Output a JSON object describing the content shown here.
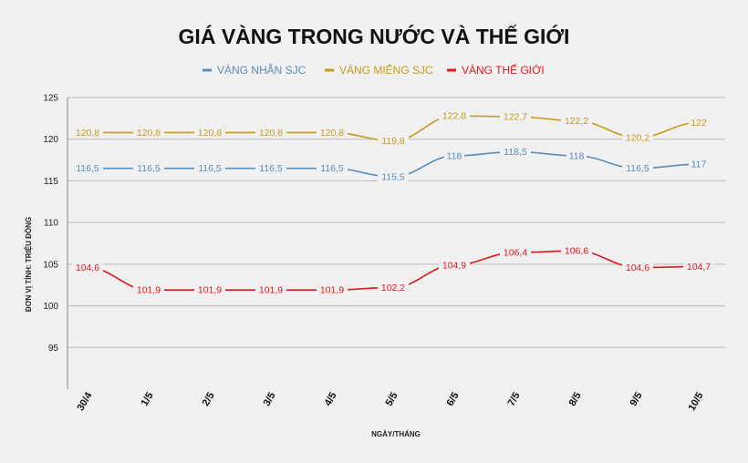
{
  "chart_data": {
    "type": "line",
    "title": "GIÁ VÀNG TRONG NƯỚC VÀ THẾ GIỚI",
    "xlabel": "NGÀY/THÁNG",
    "ylabel": "ĐƠN VỊ TÍNH: TRIỆU ĐỒNG",
    "ylim": [
      90,
      125
    ],
    "yticks": [
      125,
      120,
      115,
      110,
      105,
      100,
      95
    ],
    "grid": true,
    "legend_position": "top-center",
    "categories": [
      "30/4",
      "1/5",
      "2/5",
      "3/5",
      "4/5",
      "5/5",
      "6/5",
      "7/5",
      "8/5",
      "9/5",
      "10/5"
    ],
    "series": [
      {
        "name": "VÀNG NHẪN SJC",
        "color": "#5b8db8",
        "values": [
          116.5,
          116.5,
          116.5,
          116.5,
          116.5,
          115.5,
          118,
          118.5,
          118,
          116.5,
          117
        ],
        "labels": [
          "116,5",
          "116,5",
          "116,5",
          "116,5",
          "116,5",
          "115,5",
          "118",
          "118,5",
          "118",
          "116,5",
          "117"
        ]
      },
      {
        "name": "VÀNG MIẾNG SJC",
        "color": "#c89b1c",
        "values": [
          120.8,
          120.8,
          120.8,
          120.8,
          120.8,
          119.8,
          122.8,
          122.7,
          122.2,
          120.2,
          122
        ],
        "labels": [
          "120,8",
          "120,8",
          "120,8",
          "120,8",
          "120,8",
          "119,8",
          "122,8",
          "122,7",
          "122,2",
          "120,2",
          "122"
        ]
      },
      {
        "name": "VÀNG THẾ GIỚI",
        "color": "#e01818",
        "values": [
          104.6,
          101.9,
          101.9,
          101.9,
          101.9,
          102.2,
          104.9,
          106.4,
          106.6,
          104.6,
          104.7
        ],
        "labels": [
          "104,6",
          "101,9",
          "101,9",
          "101,9",
          "101,9",
          "102,2",
          "104,9",
          "106,4",
          "106,6",
          "104,6",
          "104,7"
        ]
      }
    ]
  }
}
